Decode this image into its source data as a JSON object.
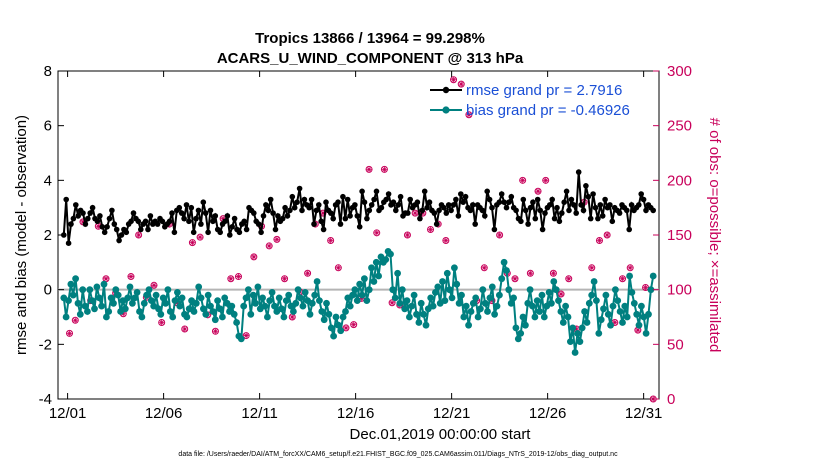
{
  "chart_data": {
    "type": "line",
    "title": "Tropics 13866 / 13964 = 99.298%",
    "subtitle": "ACARS_U_WIND_COMPONENT @ 313 hPa",
    "xlabel": "Dec.01,2019 00:00:00 start",
    "ylabel": "rmse and bias (model - observation)",
    "y2label": "# of obs: o=possible; ×=assimilated",
    "footnote": "data file: /Users/raeder/DAI/ATM_forcXX/CAM6_setup/f.e21.FHIST_BGC.f09_025.CAM6assim.011/Diags_NTrS_2019-12/obs_diag_output.nc",
    "xlim": [
      0.5,
      31.8
    ],
    "ylim": [
      -4,
      8
    ],
    "y2lim": [
      0,
      300
    ],
    "x_ticks": [
      1,
      6,
      11,
      16,
      21,
      26,
      31
    ],
    "x_tick_labels": [
      "12/01",
      "12/06",
      "12/11",
      "12/16",
      "12/21",
      "12/26",
      "12/31"
    ],
    "y_ticks": [
      -4,
      -2,
      0,
      2,
      4,
      6,
      8
    ],
    "y2_ticks": [
      0,
      50,
      100,
      150,
      200,
      250,
      300
    ],
    "colors": {
      "rmse": "#000000",
      "bias": "#008080",
      "obs": "#c8005a",
      "legend_text": "#1a4fd6",
      "zero_line": "#b4b4b4"
    },
    "series": [
      {
        "name": "rmse grand pr = 2.7916",
        "key": "rmse",
        "values": [
          2.0,
          3.3,
          1.7,
          2.4,
          2.6,
          3.1,
          2.7,
          2.9,
          2.8,
          2.4,
          2.6,
          2.8,
          3.0,
          2.6,
          2.5,
          2.7,
          2.3,
          2.1,
          2.3,
          2.6,
          2.9,
          2.4,
          2.2,
          1.8,
          2.0,
          2.2,
          2.1,
          2.4,
          2.5,
          2.8,
          2.6,
          2.5,
          2.2,
          2.4,
          2.5,
          2.2,
          2.7,
          2.4,
          2.5,
          2.4,
          2.6,
          2.5,
          2.3,
          2.4,
          2.5,
          2.8,
          2.1,
          2.9,
          3.0,
          2.8,
          2.6,
          3.1,
          2.5,
          3.0,
          2.1,
          2.6,
          2.9,
          2.4,
          3.2,
          2.8,
          2.1,
          2.9,
          2.5,
          2.7,
          2.2,
          2.1,
          2.4,
          2.5,
          2.7,
          2.0,
          2.3,
          2.6,
          2.2,
          2.1,
          2.4,
          2.5,
          2.2,
          3.0,
          2.9,
          2.8,
          2.5,
          2.4,
          2.1,
          2.7,
          3.1,
          2.9,
          3.3,
          2.8,
          2.2,
          2.7,
          2.5,
          2.6,
          3.0,
          2.7,
          2.9,
          3.4,
          3.0,
          3.2,
          3.7,
          2.9,
          3.3,
          3.1,
          3.0,
          3.3,
          2.4,
          2.9,
          3.1,
          2.5,
          2.2,
          3.2,
          2.9,
          2.8,
          2.6,
          3.1,
          3.2,
          2.4,
          3.4,
          2.6,
          3.3,
          2.7,
          3.0,
          3.1,
          2.7,
          2.3,
          3.6,
          3.2,
          2.6,
          2.9,
          3.1,
          3.3,
          3.6,
          2.9,
          3.0,
          3.2,
          3.3,
          3.5,
          3.1,
          3.2,
          2.9,
          3.1,
          3.4,
          2.7,
          2.8,
          2.8,
          3.3,
          3.0,
          3.1,
          3.2,
          2.6,
          2.9,
          3.6,
          3.0,
          3.2,
          2.9,
          2.8,
          2.4,
          2.9,
          3.1,
          3.0,
          2.8,
          3.1,
          2.9,
          3.1,
          3.3,
          2.7,
          3.5,
          3.2,
          3.4,
          3.0,
          2.9,
          3.1,
          2.4,
          3.1,
          3.0,
          2.9,
          2.7,
          3.6,
          3.3,
          3.0,
          2.2,
          3.1,
          3.2,
          3.5,
          3.2,
          3.0,
          3.2,
          3.4,
          3.0,
          2.9,
          2.6,
          2.5,
          3.3,
          2.9,
          2.4,
          3.0,
          3.2,
          2.6,
          3.3,
          2.9,
          2.2,
          2.8,
          3.0,
          3.1,
          3.3,
          2.6,
          3.0,
          2.5,
          2.8,
          3.2,
          3.6,
          2.9,
          3.3,
          3.1,
          2.8,
          4.3,
          3.1,
          2.9,
          3.8,
          3.4,
          2.6,
          3.5,
          3.0,
          2.6,
          3.1,
          2.7,
          3.3,
          3.0,
          3.1,
          2.5,
          3.0,
          2.9,
          2.8,
          3.1,
          3.0,
          2.9,
          2.2,
          3.1,
          2.9,
          3.0,
          3.1,
          3.5,
          3.3,
          2.9,
          3.1,
          3.0,
          2.9
        ]
      },
      {
        "name": "bias grand pr = -0.46926",
        "key": "bias",
        "values": [
          -0.3,
          -1.0,
          -0.4,
          0.2,
          -0.2,
          0.4,
          -0.5,
          -0.9,
          0.0,
          -0.6,
          -0.8,
          0.0,
          -0.4,
          -0.7,
          0.1,
          -0.3,
          -0.6,
          0.2,
          -1.0,
          -0.8,
          -0.3,
          -0.5,
          0.0,
          -0.2,
          -0.8,
          -0.4,
          -0.7,
          -0.3,
          0.1,
          -0.5,
          -0.3,
          -0.1,
          -0.8,
          -1.0,
          -0.5,
          -0.2,
          0.0,
          -0.4,
          -0.6,
          -0.2,
          -0.7,
          -0.9,
          -0.3,
          -0.5,
          0.0,
          -0.8,
          -1.0,
          -0.4,
          -0.1,
          -0.6,
          -0.3,
          -0.9,
          -1.0,
          -0.7,
          -0.4,
          -0.8,
          -0.5,
          0.1,
          -0.3,
          -0.7,
          -0.9,
          -0.2,
          -0.6,
          -0.8,
          -1.1,
          -0.4,
          -0.7,
          -1.0,
          -0.3,
          -0.5,
          -0.8,
          -0.6,
          -0.9,
          -1.2,
          -1.7,
          -1.8,
          -0.6,
          -0.3,
          0.0,
          -0.9,
          -0.2,
          -0.5,
          0.1,
          -0.7,
          -0.3,
          -0.6,
          -1.0,
          -0.4,
          -0.1,
          -0.6,
          -0.8,
          -0.3,
          -0.7,
          -1.0,
          -0.4,
          -0.2,
          -0.6,
          -0.8,
          -0.5,
          0.0,
          -0.3,
          -0.6,
          -0.1,
          -0.4,
          -0.9,
          -0.5,
          -0.2,
          0.3,
          -0.4,
          -0.8,
          -1.1,
          -0.5,
          -0.9,
          -1.4,
          -1.7,
          -1.0,
          -1.3,
          -1.5,
          -1.0,
          -0.8,
          -0.3,
          -0.6,
          -0.2,
          0.0,
          -0.4,
          0.2,
          -0.2,
          0.4,
          -0.4,
          0.0,
          0.8,
          0.3,
          1.0,
          0.5,
          1.2,
          1.0,
          1.1,
          1.4,
          1.3,
          0.0,
          -0.3,
          0.6,
          -0.5,
          0.0,
          -0.7,
          -0.4,
          -1.0,
          -0.6,
          -0.2,
          -0.9,
          -1.2,
          -0.5,
          -0.9,
          -1.3,
          -0.7,
          -0.3,
          -0.6,
          -0.1,
          0.1,
          -0.5,
          0.3,
          -0.4,
          0.6,
          0.0,
          -0.3,
          0.8,
          0.2,
          -0.5,
          -0.2,
          -1.0,
          -0.6,
          -1.3,
          -0.8,
          -0.5,
          -0.3,
          -1.0,
          -0.7,
          0.0,
          -0.5,
          -0.8,
          -0.3,
          0.1,
          -0.9,
          -0.6,
          -0.2,
          0.4,
          1.0,
          0.7,
          0.0,
          -0.5,
          -0.3,
          -1.4,
          -1.8,
          -1.6,
          -1.0,
          -1.3,
          -0.5,
          0.0,
          -0.6,
          -1.0,
          -0.4,
          -0.8,
          -0.2,
          -1.0,
          -0.6,
          -0.1,
          -0.5,
          0.3,
          0.0,
          -0.4,
          -0.8,
          -1.2,
          -0.6,
          -1.0,
          -1.9,
          -1.4,
          -2.3,
          -1.6,
          -1.9,
          -1.4,
          -0.8,
          -1.2,
          -0.5,
          -0.2,
          0.3,
          -0.4,
          -1.6,
          -1.1,
          -0.7,
          -0.2,
          -0.9,
          -1.3,
          -0.6,
          0.0,
          -0.4,
          -0.8,
          -1.2,
          -0.6,
          -1.0,
          0.5,
          -0.1,
          -0.5,
          -0.9,
          -1.3,
          -0.6,
          -1.0,
          -1.6,
          -0.9,
          0.0,
          0.5
        ]
      },
      {
        "name": "# of obs possible / assimilated",
        "key": "obs",
        "axis": "right",
        "x": [
          1.1,
          1.4,
          1.8,
          2.2,
          2.6,
          3.0,
          3.5,
          3.9,
          4.3,
          4.7,
          5.1,
          5.5,
          5.9,
          6.3,
          6.7,
          7.1,
          7.5,
          7.9,
          8.3,
          8.7,
          9.1,
          9.5,
          9.9,
          10.3,
          10.7,
          11.1,
          11.5,
          11.9,
          12.3,
          12.7,
          13.1,
          13.5,
          13.9,
          14.3,
          14.7,
          15.1,
          15.5,
          15.9,
          16.3,
          16.7,
          17.1,
          17.5,
          17.9,
          18.3,
          18.7,
          19.1,
          19.5,
          19.9,
          20.3,
          20.7,
          21.1,
          21.5,
          21.9,
          22.3,
          22.7,
          23.1,
          23.5,
          23.9,
          24.3,
          24.7,
          25.1,
          25.5,
          25.9,
          26.3,
          26.7,
          27.1,
          27.5,
          27.9,
          28.3,
          28.7,
          29.1,
          29.5,
          29.9,
          30.3,
          30.7,
          31.1,
          31.5
        ],
        "values": [
          60,
          72,
          162,
          90,
          158,
          110,
          97,
          78,
          112,
          150,
          93,
          104,
          70,
          160,
          88,
          64,
          143,
          148,
          77,
          62,
          165,
          110,
          112,
          58,
          130,
          158,
          140,
          146,
          110,
          75,
          98,
          115,
          160,
          170,
          145,
          120,
          65,
          68,
          92,
          210,
          152,
          210,
          88,
          86,
          150,
          170,
          170,
          155,
          160,
          145,
          292,
          288,
          260,
          90,
          120,
          90,
          150,
          115,
          110,
          200,
          115,
          190,
          200,
          115,
          96,
          110,
          64,
          180,
          120,
          145,
          150,
          70,
          110,
          120,
          63,
          102,
          0
        ]
      }
    ]
  }
}
